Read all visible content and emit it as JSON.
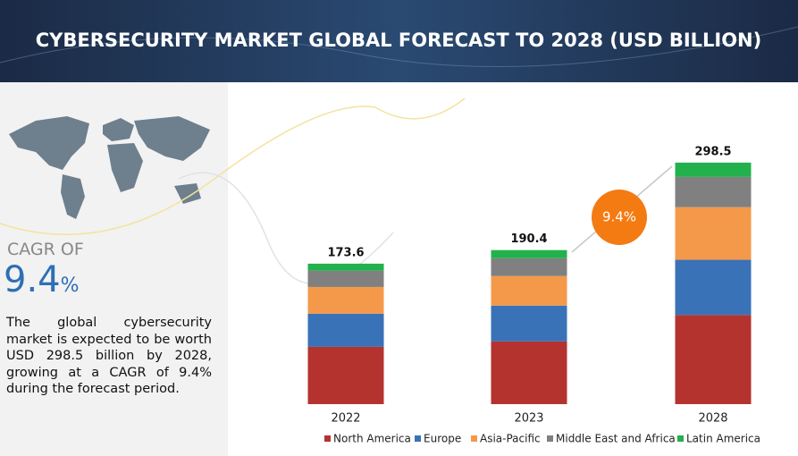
{
  "header": {
    "title": "CYBERSECURITY MARKET GLOBAL FORECAST TO 2028 (USD BILLION)"
  },
  "sidebar": {
    "cagr_label": "CAGR OF",
    "cagr_value": "9.4",
    "cagr_unit": "%",
    "description": "The global cybersecurity market is expected to be worth USD 298.5 billion by 2028, growing at a CAGR of 9.4% during the forecast period."
  },
  "chart_data": {
    "type": "stacked-bar",
    "categories": [
      "2022",
      "2023",
      "2028"
    ],
    "totals": [
      173.6,
      190.4,
      298.5
    ],
    "growth_label": "9.4%",
    "series": [
      {
        "name": "North America",
        "color": "#b5332e",
        "values": [
          70.8,
          77.5,
          110.1
        ]
      },
      {
        "name": "Europe",
        "color": "#3a72b8",
        "values": [
          41,
          44.3,
          68.3
        ]
      },
      {
        "name": "Asia-Pacific",
        "color": "#f4994a",
        "values": [
          33,
          36.5,
          65
        ]
      },
      {
        "name": "Middle East and Africa",
        "color": "#808080",
        "values": [
          20,
          22.1,
          37.4
        ]
      },
      {
        "name": "Latin America",
        "color": "#23b14d",
        "values": [
          8.8,
          10,
          17.7
        ]
      }
    ]
  }
}
